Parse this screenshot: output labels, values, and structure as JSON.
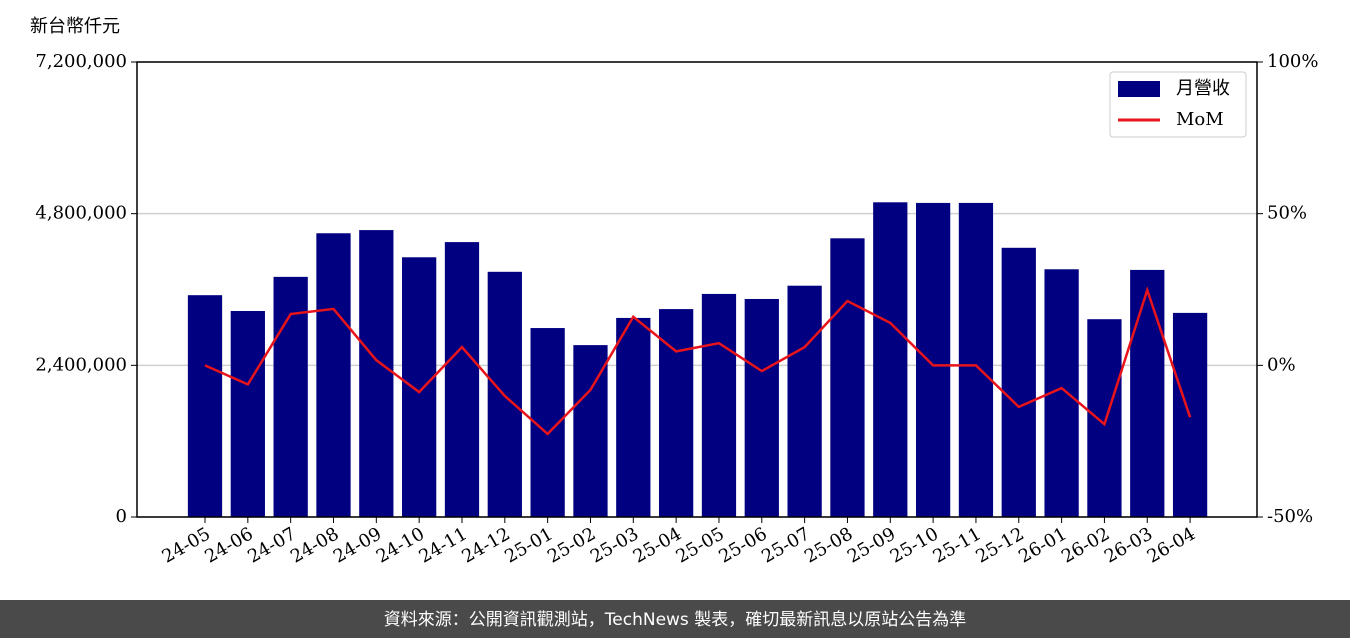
{
  "chart_data": {
    "type": "bar_line",
    "y_label": "新台幣仟元",
    "categories": [
      "24-05",
      "24-06",
      "24-07",
      "24-08",
      "24-09",
      "24-10",
      "24-11",
      "24-12",
      "25-01",
      "25-02",
      "25-03",
      "25-04",
      "25-05",
      "25-06",
      "25-07",
      "25-08",
      "25-09",
      "25-10",
      "25-11",
      "25-12",
      "26-01",
      "26-02",
      "26-03",
      "26-04"
    ],
    "series": [
      {
        "name": "月營收",
        "color": "#000080",
        "type": "bar",
        "values": [
          3510000,
          3260000,
          3800000,
          4490000,
          4540000,
          4110000,
          4350000,
          3880000,
          2990000,
          2720000,
          3150000,
          3290000,
          3530000,
          3450000,
          3660000,
          4410000,
          4980000,
          4970000,
          4970000,
          4260000,
          3920000,
          3130000,
          3910000,
          3230000
        ]
      },
      {
        "name": "MoM",
        "color": "#e8141b",
        "type": "line",
        "axis": "y2",
        "values": [
          0,
          -6.3,
          16.9,
          18.6,
          1.7,
          -8.8,
          6.0,
          -10.1,
          -22.6,
          -8.1,
          16.0,
          4.6,
          7.3,
          -1.9,
          6.0,
          21.2,
          14.0,
          0,
          0,
          -13.7,
          -7.5,
          -19.4,
          24.8,
          -17.1
        ]
      }
    ],
    "ylim": [
      0,
      7200000
    ],
    "yticks": [
      0,
      {
        "value": 2400000,
        "label": "2,400,000"
      },
      {
        "value": 4800000,
        "label": "4,800,000"
      },
      {
        "value": 7200000,
        "label": "7,200,000"
      }
    ],
    "y2lim": [
      -50,
      100
    ],
    "y2ticks": [
      {
        "value": -50,
        "label": "-50%"
      },
      {
        "value": 0,
        "label": "0%"
      },
      {
        "value": 50,
        "label": "50%"
      },
      {
        "value": 100,
        "label": "100%"
      }
    ],
    "grid": true,
    "legend": "upper right",
    "footer": "資料來源：公開資訊觀測站，TechNews 製表，確切最新訊息以原站公告為準"
  }
}
